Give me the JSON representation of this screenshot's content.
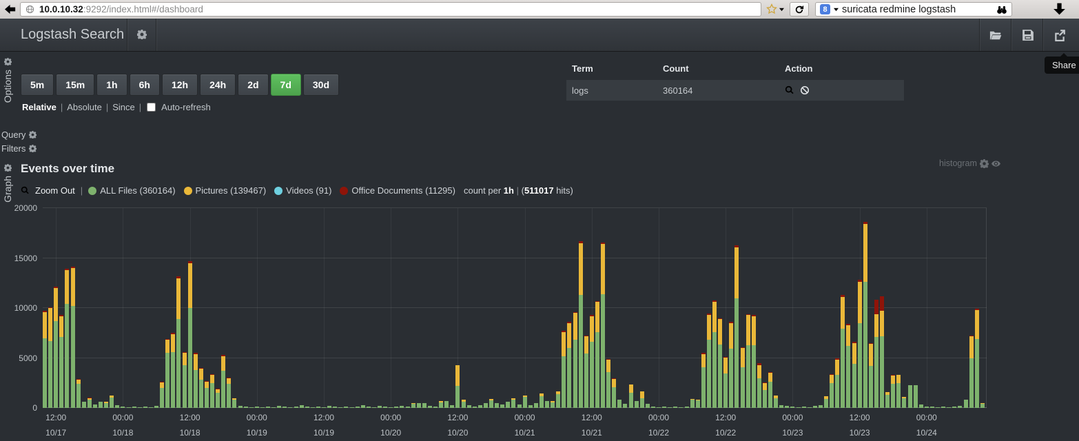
{
  "browser": {
    "url_host": "10.0.10.32",
    "url_rest": ":9292/index.html#/dashboard",
    "search_engine_badge": "8",
    "search_query": "suricata redmine logstash"
  },
  "navbar": {
    "title": "Logstash Search",
    "share_tooltip": "Share"
  },
  "options": {
    "rail_label": "Options",
    "separator": "|",
    "time_buttons": [
      {
        "label": "5m",
        "active": false
      },
      {
        "label": "15m",
        "active": false
      },
      {
        "label": "1h",
        "active": false
      },
      {
        "label": "6h",
        "active": false
      },
      {
        "label": "12h",
        "active": false
      },
      {
        "label": "24h",
        "active": false
      },
      {
        "label": "2d",
        "active": false
      },
      {
        "label": "7d",
        "active": true
      },
      {
        "label": "30d",
        "active": false
      }
    ],
    "active_button_color": "#5cb85c",
    "modes": [
      {
        "label": "Relative",
        "active": true
      },
      {
        "label": "Absolute",
        "active": false
      },
      {
        "label": "Since",
        "active": false
      }
    ],
    "autorefresh_label": "Auto-refresh",
    "autorefresh_checked": false,
    "table": {
      "headers": [
        "Term",
        "Count",
        "Action"
      ],
      "rows": [
        {
          "term": "logs",
          "count": "360164",
          "actions": [
            "search",
            "exclude"
          ]
        }
      ]
    }
  },
  "sections": {
    "query_label": "Query",
    "filters_label": "Filters"
  },
  "graph": {
    "rail_label": "Graph",
    "title": "Events over time",
    "panel_type_label": "histogram",
    "zoom_out_label": "Zoom Out",
    "pipe": "|",
    "count_per_label": "count per",
    "interval_label": "1h",
    "hits_prefix": "(",
    "hits_value": "511017",
    "hits_suffix": " hits)",
    "legend": [
      {
        "label": "ALL Files (360164)",
        "color": "#7EB26D"
      },
      {
        "label": "Pictures (139467)",
        "color": "#EAB839"
      },
      {
        "label": "Videos (91)",
        "color": "#6ED0E0"
      },
      {
        "label": "Office Documents (11295)",
        "color": "#8f1409"
      }
    ]
  },
  "chart_data": {
    "type": "bar",
    "stacked": true,
    "title": "Events over time",
    "xlabel": "",
    "ylabel": "",
    "interval": "1h",
    "time_range": "7d",
    "total_hits": 511017,
    "grid": true,
    "legend_position": "top",
    "ylim": [
      0,
      20000
    ],
    "yticks": [
      0,
      5000,
      10000,
      15000,
      20000
    ],
    "series": [
      {
        "name": "ALL Files",
        "total": 360164,
        "color": "#7EB26D"
      },
      {
        "name": "Pictures",
        "total": 139467,
        "color": "#EAB839"
      },
      {
        "name": "Videos",
        "total": 91,
        "color": "#6ED0E0"
      },
      {
        "name": "Office Documents",
        "total": 11295,
        "color": "#8f1409"
      }
    ],
    "bars_series": [
      "ALL Files",
      "Pictures",
      "Office Documents"
    ],
    "stack_colors": [
      "#7EB26D",
      "#EAB839",
      "#8f1409"
    ],
    "x_ticks": [
      {
        "hour": 2,
        "time": "12:00",
        "date": "10/17"
      },
      {
        "hour": 14,
        "time": "00:00",
        "date": "10/18"
      },
      {
        "hour": 26,
        "time": "12:00",
        "date": "10/18"
      },
      {
        "hour": 38,
        "time": "00:00",
        "date": "10/19"
      },
      {
        "hour": 50,
        "time": "12:00",
        "date": "10/19"
      },
      {
        "hour": 62,
        "time": "00:00",
        "date": "10/20"
      },
      {
        "hour": 74,
        "time": "12:00",
        "date": "10/20"
      },
      {
        "hour": 86,
        "time": "00:00",
        "date": "10/21"
      },
      {
        "hour": 98,
        "time": "12:00",
        "date": "10/21"
      },
      {
        "hour": 110,
        "time": "00:00",
        "date": "10/22"
      },
      {
        "hour": 122,
        "time": "12:00",
        "date": "10/22"
      },
      {
        "hour": 134,
        "time": "00:00",
        "date": "10/23"
      },
      {
        "hour": 146,
        "time": "12:00",
        "date": "10/23"
      },
      {
        "hour": 158,
        "time": "00:00",
        "date": "10/24"
      }
    ],
    "bars": [
      [
        7000,
        2600,
        100
      ],
      [
        6700,
        3300,
        100
      ],
      [
        8700,
        3300,
        150
      ],
      [
        7100,
        2100,
        100
      ],
      [
        10400,
        3400,
        100
      ],
      [
        10200,
        3800,
        150
      ],
      [
        2400,
        450,
        50
      ],
      [
        600,
        0,
        0
      ],
      [
        800,
        150,
        50
      ],
      [
        350,
        0,
        0
      ],
      [
        650,
        0,
        0
      ],
      [
        500,
        150,
        0
      ],
      [
        1050,
        200,
        0
      ],
      [
        250,
        0,
        0
      ],
      [
        150,
        0,
        0
      ],
      [
        100,
        0,
        0
      ],
      [
        150,
        0,
        0
      ],
      [
        100,
        0,
        0
      ],
      [
        150,
        0,
        0
      ],
      [
        100,
        0,
        0
      ],
      [
        200,
        0,
        0
      ],
      [
        2000,
        550,
        50
      ],
      [
        5500,
        1300,
        100
      ],
      [
        5600,
        1800,
        100
      ],
      [
        8900,
        4100,
        150
      ],
      [
        4300,
        1200,
        100
      ],
      [
        10000,
        4500,
        200
      ],
      [
        3800,
        1600,
        100
      ],
      [
        2800,
        1100,
        100
      ],
      [
        2000,
        600,
        50
      ],
      [
        2500,
        800,
        50
      ],
      [
        1500,
        350,
        50
      ],
      [
        3700,
        1500,
        100
      ],
      [
        2400,
        600,
        50
      ],
      [
        800,
        150,
        0
      ],
      [
        200,
        0,
        0
      ],
      [
        150,
        0,
        0
      ],
      [
        100,
        0,
        0
      ],
      [
        150,
        0,
        0
      ],
      [
        100,
        0,
        0
      ],
      [
        150,
        0,
        0
      ],
      [
        100,
        0,
        0
      ],
      [
        200,
        0,
        0
      ],
      [
        150,
        0,
        0
      ],
      [
        100,
        0,
        0
      ],
      [
        150,
        0,
        0
      ],
      [
        250,
        0,
        0
      ],
      [
        150,
        0,
        0
      ],
      [
        100,
        0,
        0
      ],
      [
        150,
        0,
        0
      ],
      [
        100,
        0,
        0
      ],
      [
        200,
        0,
        0
      ],
      [
        150,
        0,
        0
      ],
      [
        100,
        0,
        0
      ],
      [
        150,
        0,
        0
      ],
      [
        100,
        0,
        0
      ],
      [
        150,
        0,
        0
      ],
      [
        250,
        0,
        0
      ],
      [
        150,
        0,
        0
      ],
      [
        100,
        0,
        0
      ],
      [
        200,
        0,
        0
      ],
      [
        150,
        0,
        0
      ],
      [
        100,
        0,
        0
      ],
      [
        150,
        0,
        0
      ],
      [
        200,
        0,
        0
      ],
      [
        150,
        0,
        0
      ],
      [
        400,
        100,
        0
      ],
      [
        500,
        0,
        0
      ],
      [
        450,
        0,
        0
      ],
      [
        200,
        0,
        0
      ],
      [
        150,
        0,
        0
      ],
      [
        550,
        150,
        0
      ],
      [
        700,
        0,
        0
      ],
      [
        250,
        0,
        0
      ],
      [
        2200,
        2100,
        0
      ],
      [
        650,
        150,
        0
      ],
      [
        250,
        0,
        0
      ],
      [
        150,
        0,
        0
      ],
      [
        300,
        0,
        0
      ],
      [
        500,
        0,
        0
      ],
      [
        750,
        150,
        0
      ],
      [
        500,
        0,
        0
      ],
      [
        350,
        0,
        0
      ],
      [
        600,
        0,
        0
      ],
      [
        800,
        150,
        0
      ],
      [
        350,
        0,
        0
      ],
      [
        1100,
        150,
        0
      ],
      [
        300,
        0,
        0
      ],
      [
        450,
        0,
        0
      ],
      [
        1200,
        250,
        0
      ],
      [
        700,
        0,
        0
      ],
      [
        550,
        150,
        0
      ],
      [
        1400,
        250,
        0
      ],
      [
        5200,
        2400,
        100
      ],
      [
        6000,
        2500,
        100
      ],
      [
        6800,
        2700,
        100
      ],
      [
        11300,
        5200,
        200
      ],
      [
        5450,
        1700,
        50
      ],
      [
        6600,
        2600,
        100
      ],
      [
        7600,
        3000,
        100
      ],
      [
        11400,
        5000,
        150
      ],
      [
        3600,
        1200,
        50
      ],
      [
        2100,
        800,
        100
      ],
      [
        830,
        0,
        0
      ],
      [
        400,
        0,
        0
      ],
      [
        1520,
        830,
        0
      ],
      [
        700,
        0,
        0
      ],
      [
        1000,
        650,
        0
      ],
      [
        400,
        0,
        0
      ],
      [
        150,
        0,
        0
      ],
      [
        100,
        0,
        0
      ],
      [
        150,
        0,
        0
      ],
      [
        100,
        0,
        0
      ],
      [
        150,
        0,
        0
      ],
      [
        100,
        0,
        0
      ],
      [
        150,
        0,
        0
      ],
      [
        800,
        100,
        0
      ],
      [
        750,
        100,
        0
      ],
      [
        4100,
        1300,
        150
      ],
      [
        6800,
        2500,
        150
      ],
      [
        7600,
        3000,
        150
      ],
      [
        6350,
        2550,
        100
      ],
      [
        3470,
        1550,
        80
      ],
      [
        5900,
        2600,
        100
      ],
      [
        11000,
        5100,
        150
      ],
      [
        4100,
        1900,
        100
      ],
      [
        6300,
        3000,
        100
      ],
      [
        6300,
        2900,
        100
      ],
      [
        3000,
        1300,
        150
      ],
      [
        1800,
        700,
        50
      ],
      [
        2600,
        900,
        100
      ],
      [
        1000,
        250,
        0
      ],
      [
        300,
        0,
        0
      ],
      [
        200,
        0,
        0
      ],
      [
        150,
        0,
        0
      ],
      [
        100,
        0,
        0
      ],
      [
        150,
        0,
        0
      ],
      [
        100,
        0,
        0
      ],
      [
        200,
        0,
        0
      ],
      [
        250,
        0,
        0
      ],
      [
        900,
        250,
        0
      ],
      [
        2500,
        800,
        100
      ],
      [
        3300,
        1500,
        150
      ],
      [
        7900,
        3200,
        200
      ],
      [
        6200,
        2100,
        100
      ],
      [
        4400,
        2100,
        100
      ],
      [
        8500,
        4100,
        200
      ],
      [
        12600,
        5800,
        200
      ],
      [
        4200,
        2200,
        100
      ],
      [
        7100,
        2300,
        1400
      ],
      [
        7200,
        2500,
        1500
      ],
      [
        1300,
        300,
        0
      ],
      [
        2400,
        850,
        50
      ],
      [
        2450,
        850,
        0
      ],
      [
        950,
        150,
        0
      ],
      [
        2250,
        0,
        0
      ],
      [
        2300,
        0,
        0
      ],
      [
        350,
        0,
        0
      ],
      [
        150,
        0,
        0
      ],
      [
        150,
        0,
        0
      ],
      [
        100,
        0,
        0
      ],
      [
        150,
        0,
        0
      ],
      [
        100,
        0,
        0
      ],
      [
        150,
        0,
        0
      ],
      [
        200,
        0,
        0
      ],
      [
        800,
        0,
        0
      ],
      [
        4950,
        2200,
        100
      ],
      [
        6900,
        2900,
        100
      ],
      [
        400,
        100,
        0
      ]
    ]
  }
}
